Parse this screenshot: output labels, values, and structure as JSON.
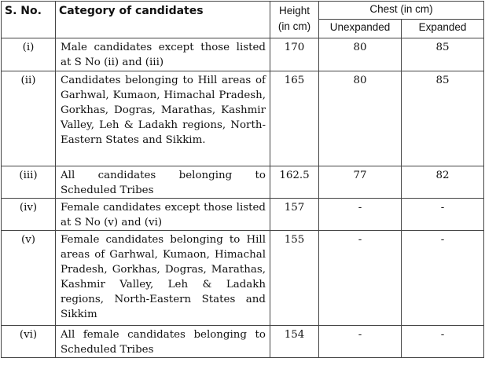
{
  "header": {
    "sno": "S. No.",
    "category": "Category of candidates",
    "height": "Height (in cm)",
    "chest": "Chest (in cm)",
    "unexpanded": "Unexpanded",
    "expanded": "Expanded"
  },
  "rows": [
    {
      "sno": "(i)",
      "category": "Male candidates except those listed at S No (ii) and (iii)",
      "height": "170",
      "unexpanded": "80",
      "expanded": "85"
    },
    {
      "sno": "(ii)",
      "category": "Candidates belonging to Hill areas of Garhwal, Kumaon, Himachal Pradesh, Gorkhas, Dogras, Marathas, Kashmir Valley, Leh & Ladakh regions, North-Eastern States and Sikkim.",
      "height": "165",
      "unexpanded": "80",
      "expanded": "85"
    },
    {
      "sno": "(iii)",
      "category": "All candidates belonging to Scheduled Tribes",
      "height": "162.5",
      "unexpanded": "77",
      "expanded": "82"
    },
    {
      "sno": "(iv)",
      "category": "Female candidates except those listed at S No (v) and (vi)",
      "height": "157",
      "unexpanded": "-",
      "expanded": "-"
    },
    {
      "sno": "(v)",
      "category": "Female candidates belonging to Hill areas of Garhwal, Kumaon, Himachal Pradesh, Gorkhas, Dogras, Marathas, Kashmir Valley, Leh & Ladakh regions, North-Eastern States and Sikkim",
      "height": "155",
      "unexpanded": "-",
      "expanded": "-"
    },
    {
      "sno": "(vi)",
      "category": "All female candidates belonging to Scheduled Tribes",
      "height": "154",
      "unexpanded": "-",
      "expanded": "-"
    }
  ]
}
